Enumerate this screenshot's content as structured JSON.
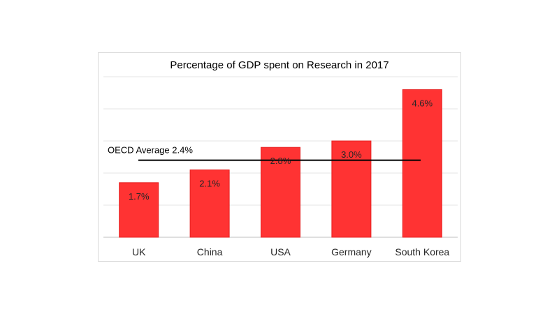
{
  "chart_data": {
    "type": "bar",
    "title": "Percentage of GDP spent on Research in 2017",
    "xlabel": "",
    "ylabel": "",
    "categories": [
      "UK",
      "China",
      "USA",
      "Germany",
      "South Korea"
    ],
    "values": [
      1.7,
      2.1,
      2.8,
      3.0,
      4.6
    ],
    "data_labels": [
      "1.7%",
      "2.1%",
      "2.8%",
      "3.0%",
      "4.6%"
    ],
    "ylim": [
      0,
      5
    ],
    "gridlines": [
      0,
      1,
      2,
      3,
      4,
      5
    ],
    "grid": true,
    "legend": "none",
    "bar_color": "#ff3333",
    "bar_border_color": "#e62020",
    "reference_line": {
      "label": "OECD Average 2.4%",
      "value": 2.4,
      "color": "#000000"
    }
  }
}
